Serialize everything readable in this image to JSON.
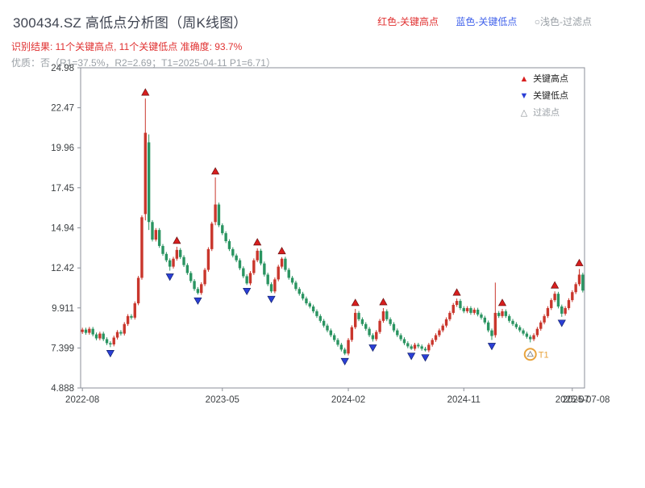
{
  "header": {
    "title": "300434.SZ 高低点分析图（周K线图）",
    "legend_high": "红色-关键高点",
    "legend_low": "蓝色-关键低点",
    "legend_filter": "○浅色-过滤点",
    "result_line": "识别结果: 11个关键高点, 11个关键低点  准确度: 93.7%",
    "quality_line": "优质：否（R1=37.5%，R2=2.69；T1=2025-04-11 P1=6.71）"
  },
  "plot_legend": {
    "high": "关键高点",
    "low": "关键低点",
    "filter": "过滤点"
  },
  "colors": {
    "up": "#c9362c",
    "down": "#2a9461",
    "marker_high": "#d81e1e",
    "marker_high_edge": "#6b0f0f",
    "marker_low": "#2b3fd6",
    "marker_low_edge": "#10206b",
    "filter": "#e8a33d",
    "axis": "#8b8f98",
    "tick_text": "#3c4043"
  },
  "chart_data": {
    "type": "candlestick",
    "title": "300434.SZ 高低点分析图（周K线图）",
    "xlabel": "",
    "ylabel": "",
    "ylim": [
      4.888,
      24.98
    ],
    "y_ticks": [
      "24.98",
      "22.47",
      "19.96",
      "17.45",
      "14.94",
      "12.42",
      "9.911",
      "7.399",
      "4.888"
    ],
    "y_tick_values": [
      24.98,
      22.47,
      19.96,
      17.45,
      14.94,
      12.42,
      9.911,
      7.399,
      4.888
    ],
    "x_ticks": [
      {
        "label": "2022-08",
        "index": 0
      },
      {
        "label": "2023-05",
        "index": 40
      },
      {
        "label": "2024-02",
        "index": 76
      },
      {
        "label": "2024-11",
        "index": 109
      },
      {
        "label": "2025-07",
        "index": 140
      }
    ],
    "end_date_label": "2025-07-08",
    "counts": {
      "key_highs": 11,
      "key_lows": 11,
      "accuracy": "93.7%"
    },
    "candles": [
      [
        8.4,
        8.67,
        8.28,
        8.55
      ],
      [
        8.55,
        8.67,
        8.23,
        8.35
      ],
      [
        8.35,
        8.72,
        8.23,
        8.6
      ],
      [
        8.6,
        8.72,
        8.13,
        8.25
      ],
      [
        8.25,
        8.37,
        7.88,
        8.0
      ],
      [
        8.0,
        8.42,
        7.88,
        8.3
      ],
      [
        8.3,
        8.42,
        7.83,
        7.95
      ],
      [
        7.95,
        8.07,
        7.58,
        7.7
      ],
      [
        7.7,
        7.82,
        7.45,
        7.62
      ],
      [
        7.62,
        8.17,
        7.5,
        8.05
      ],
      [
        8.05,
        8.52,
        7.93,
        8.4
      ],
      [
        8.4,
        8.52,
        8.18,
        8.3
      ],
      [
        8.3,
        9.02,
        8.18,
        8.9
      ],
      [
        8.9,
        9.52,
        8.78,
        9.4
      ],
      [
        9.4,
        9.52,
        9.18,
        9.3
      ],
      [
        9.3,
        10.32,
        9.18,
        10.2
      ],
      [
        10.2,
        11.92,
        10.08,
        11.8
      ],
      [
        11.8,
        15.72,
        11.68,
        15.6
      ],
      [
        15.8,
        23.05,
        15.4,
        20.9
      ],
      [
        20.3,
        20.8,
        14.8,
        15.3
      ],
      [
        15.3,
        15.42,
        14.08,
        14.2
      ],
      [
        14.2,
        14.92,
        14.08,
        14.8
      ],
      [
        14.8,
        14.92,
        13.68,
        13.8
      ],
      [
        13.8,
        13.92,
        13.18,
        13.3
      ],
      [
        13.3,
        13.42,
        12.78,
        12.9
      ],
      [
        12.9,
        13.02,
        12.25,
        12.5
      ],
      [
        12.5,
        13.12,
        12.38,
        13.0
      ],
      [
        13.0,
        13.75,
        12.88,
        13.55
      ],
      [
        13.55,
        13.67,
        12.98,
        13.1
      ],
      [
        13.1,
        13.22,
        12.48,
        12.6
      ],
      [
        12.6,
        12.72,
        11.98,
        12.1
      ],
      [
        12.1,
        12.22,
        11.48,
        11.6
      ],
      [
        11.6,
        11.72,
        10.98,
        11.1
      ],
      [
        11.1,
        11.22,
        10.75,
        10.85
      ],
      [
        10.85,
        11.52,
        10.73,
        11.4
      ],
      [
        11.4,
        12.42,
        11.28,
        12.3
      ],
      [
        12.3,
        13.72,
        12.18,
        13.6
      ],
      [
        13.6,
        15.32,
        13.48,
        15.2
      ],
      [
        15.3,
        18.1,
        15.1,
        16.4
      ],
      [
        16.4,
        16.52,
        14.98,
        15.1
      ],
      [
        15.1,
        15.22,
        14.48,
        14.6
      ],
      [
        14.6,
        14.72,
        13.98,
        14.1
      ],
      [
        14.1,
        14.22,
        13.48,
        13.6
      ],
      [
        13.6,
        13.72,
        13.08,
        13.2
      ],
      [
        13.2,
        13.32,
        12.78,
        12.9
      ],
      [
        12.9,
        13.02,
        12.28,
        12.4
      ],
      [
        12.4,
        12.52,
        11.78,
        11.9
      ],
      [
        11.9,
        12.02,
        11.35,
        11.45
      ],
      [
        11.45,
        12.22,
        11.33,
        12.1
      ],
      [
        12.1,
        13.02,
        11.98,
        12.9
      ],
      [
        12.9,
        13.65,
        12.78,
        13.5
      ],
      [
        13.5,
        13.62,
        12.58,
        12.7
      ],
      [
        12.7,
        12.82,
        11.88,
        12.0
      ],
      [
        12.0,
        12.12,
        11.28,
        11.4
      ],
      [
        11.4,
        11.52,
        10.85,
        10.95
      ],
      [
        10.95,
        11.82,
        10.83,
        11.7
      ],
      [
        11.7,
        12.62,
        11.58,
        12.5
      ],
      [
        12.5,
        13.1,
        12.38,
        13.0
      ],
      [
        13.0,
        13.12,
        12.18,
        12.3
      ],
      [
        12.3,
        12.42,
        11.68,
        11.8
      ],
      [
        11.8,
        11.92,
        11.38,
        11.5
      ],
      [
        11.5,
        11.62,
        10.98,
        11.1
      ],
      [
        11.1,
        11.22,
        10.68,
        10.8
      ],
      [
        10.8,
        10.92,
        10.38,
        10.5
      ],
      [
        10.5,
        10.62,
        10.08,
        10.2
      ],
      [
        10.2,
        10.32,
        9.88,
        10.0
      ],
      [
        10.0,
        10.12,
        9.58,
        9.7
      ],
      [
        9.7,
        9.82,
        9.28,
        9.4
      ],
      [
        9.4,
        9.52,
        8.98,
        9.1
      ],
      [
        9.1,
        9.22,
        8.68,
        8.8
      ],
      [
        8.8,
        8.92,
        8.38,
        8.5
      ],
      [
        8.5,
        8.62,
        8.08,
        8.2
      ],
      [
        8.2,
        8.32,
        7.78,
        7.9
      ],
      [
        7.9,
        8.02,
        7.48,
        7.6
      ],
      [
        7.6,
        7.72,
        7.18,
        7.3
      ],
      [
        7.3,
        7.42,
        6.95,
        7.05
      ],
      [
        7.05,
        8.02,
        6.93,
        7.9
      ],
      [
        7.9,
        8.82,
        7.78,
        8.7
      ],
      [
        8.7,
        9.85,
        8.58,
        9.6
      ],
      [
        9.6,
        9.72,
        9.08,
        9.2
      ],
      [
        9.2,
        9.32,
        8.78,
        8.9
      ],
      [
        8.9,
        9.02,
        8.48,
        8.6
      ],
      [
        8.6,
        8.72,
        8.08,
        8.2
      ],
      [
        8.2,
        8.32,
        7.8,
        7.95
      ],
      [
        7.95,
        8.52,
        7.83,
        8.4
      ],
      [
        8.4,
        9.22,
        8.28,
        9.1
      ],
      [
        9.1,
        9.9,
        8.98,
        9.7
      ],
      [
        9.7,
        9.82,
        9.08,
        9.2
      ],
      [
        9.2,
        9.32,
        8.78,
        8.9
      ],
      [
        8.9,
        9.02,
        8.38,
        8.5
      ],
      [
        8.5,
        8.62,
        8.08,
        8.2
      ],
      [
        8.2,
        8.32,
        7.83,
        7.95
      ],
      [
        7.95,
        8.07,
        7.58,
        7.7
      ],
      [
        7.7,
        7.82,
        7.38,
        7.5
      ],
      [
        7.5,
        7.62,
        7.28,
        7.35
      ],
      [
        7.35,
        7.72,
        7.23,
        7.6
      ],
      [
        7.6,
        7.72,
        7.38,
        7.5
      ],
      [
        7.5,
        7.62,
        7.23,
        7.35
      ],
      [
        7.35,
        7.47,
        7.18,
        7.25
      ],
      [
        7.25,
        7.72,
        7.13,
        7.6
      ],
      [
        7.6,
        8.02,
        7.48,
        7.9
      ],
      [
        7.9,
        8.32,
        7.78,
        8.2
      ],
      [
        8.2,
        8.62,
        8.08,
        8.5
      ],
      [
        8.5,
        8.92,
        8.38,
        8.8
      ],
      [
        8.8,
        9.32,
        8.68,
        9.2
      ],
      [
        9.2,
        9.72,
        9.08,
        9.6
      ],
      [
        9.6,
        10.22,
        9.48,
        10.1
      ],
      [
        10.1,
        10.5,
        9.98,
        10.35
      ],
      [
        10.35,
        10.47,
        9.78,
        9.9
      ],
      [
        9.9,
        10.02,
        9.58,
        9.7
      ],
      [
        9.7,
        10.02,
        9.58,
        9.9
      ],
      [
        9.9,
        10.02,
        9.48,
        9.6
      ],
      [
        9.6,
        9.92,
        9.48,
        9.8
      ],
      [
        9.8,
        9.92,
        9.38,
        9.5
      ],
      [
        9.5,
        9.62,
        9.18,
        9.3
      ],
      [
        9.3,
        9.42,
        8.88,
        9.0
      ],
      [
        9.0,
        9.12,
        8.38,
        8.5
      ],
      [
        8.5,
        8.62,
        7.9,
        8.15
      ],
      [
        8.2,
        11.5,
        8.05,
        9.6
      ],
      [
        9.6,
        9.72,
        9.28,
        9.4
      ],
      [
        9.4,
        9.85,
        9.28,
        9.7
      ],
      [
        9.7,
        9.82,
        9.28,
        9.4
      ],
      [
        9.4,
        9.52,
        8.98,
        9.1
      ],
      [
        9.1,
        9.22,
        8.78,
        8.9
      ],
      [
        8.9,
        9.02,
        8.58,
        8.7
      ],
      [
        8.7,
        8.82,
        8.38,
        8.5
      ],
      [
        8.5,
        8.62,
        8.18,
        8.3
      ],
      [
        8.3,
        8.42,
        7.98,
        8.1
      ],
      [
        8.1,
        8.22,
        7.75,
        7.95
      ],
      [
        7.95,
        8.32,
        7.83,
        8.2
      ],
      [
        8.2,
        8.72,
        8.08,
        8.6
      ],
      [
        8.6,
        9.12,
        8.48,
        9.0
      ],
      [
        9.0,
        9.52,
        8.88,
        9.4
      ],
      [
        9.4,
        10.02,
        9.28,
        9.9
      ],
      [
        9.9,
        10.52,
        9.78,
        10.4
      ],
      [
        10.4,
        10.95,
        10.28,
        10.8
      ],
      [
        10.8,
        10.92,
        9.88,
        10.0
      ],
      [
        10.0,
        10.12,
        9.35,
        9.55
      ],
      [
        9.55,
        10.02,
        9.43,
        9.9
      ],
      [
        9.9,
        10.52,
        9.78,
        10.4
      ],
      [
        10.4,
        11.02,
        10.28,
        10.9
      ],
      [
        10.9,
        11.52,
        10.78,
        11.4
      ],
      [
        11.4,
        12.35,
        11.28,
        12.0
      ],
      [
        12.0,
        12.12,
        10.88,
        11.0
      ]
    ],
    "key_high_indices": [
      18,
      27,
      38,
      50,
      57,
      78,
      86,
      107,
      120,
      135,
      142
    ],
    "key_low_indices": [
      8,
      25,
      33,
      47,
      54,
      75,
      83,
      94,
      98,
      117,
      137
    ],
    "filter_points": [
      {
        "index": 128,
        "label": "T1",
        "value": 7.0
      }
    ]
  }
}
